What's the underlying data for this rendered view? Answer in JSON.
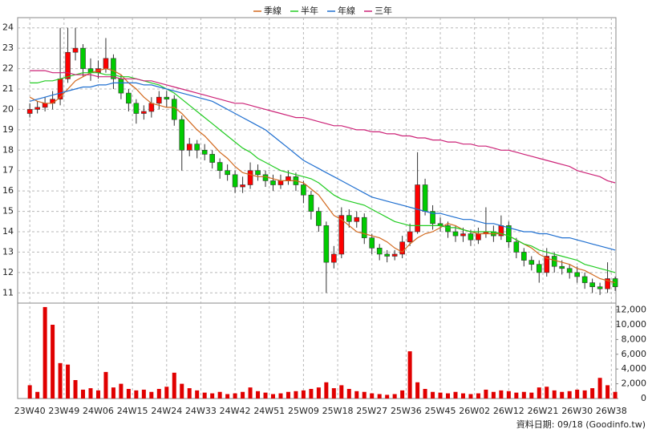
{
  "chart_data": [
    {
      "type": "candlestick",
      "x": [
        0,
        2,
        4,
        6,
        8,
        10,
        12,
        14,
        16,
        18,
        20,
        22,
        24,
        26,
        28,
        30,
        32,
        34,
        36,
        38,
        40,
        42,
        44,
        46,
        48,
        50,
        52,
        54,
        56,
        58,
        60,
        62,
        64,
        66,
        68,
        70,
        72,
        74,
        76,
        78,
        80,
        82,
        84,
        86,
        88,
        90,
        92,
        94,
        96,
        98,
        100,
        102,
        104,
        106,
        108,
        110,
        112,
        114,
        116,
        118,
        120,
        122,
        124,
        126,
        128,
        130,
        132,
        134,
        136,
        138,
        140,
        142,
        144,
        146,
        148,
        150,
        152,
        154
      ],
      "open": [
        19.8,
        20.0,
        20.1,
        20.3,
        20.5,
        21.5,
        22.8,
        23.0,
        22.0,
        21.8,
        22.0,
        22.5,
        21.5,
        20.8,
        20.3,
        19.8,
        19.9,
        20.3,
        20.6,
        20.5,
        19.5,
        18.0,
        18.3,
        18.0,
        17.8,
        17.4,
        17.0,
        16.8,
        16.2,
        16.3,
        17.0,
        16.8,
        16.5,
        16.3,
        16.5,
        16.7,
        16.3,
        15.8,
        15.0,
        14.3,
        12.5,
        12.9,
        14.8,
        14.5,
        14.7,
        13.7,
        13.2,
        12.9,
        12.8,
        12.9,
        13.5,
        14.0,
        16.3,
        15.0,
        14.4,
        14.3,
        14.0,
        13.8,
        13.9,
        13.6,
        13.9,
        14.0,
        13.8,
        14.3,
        13.5,
        13.0,
        12.6,
        12.4,
        12.0,
        12.8,
        12.3,
        12.2,
        12.0,
        11.8,
        11.5,
        11.3,
        11.2,
        11.7
      ],
      "high": [
        20.3,
        20.4,
        20.6,
        20.9,
        24.0,
        24.0,
        24.0,
        23.2,
        22.5,
        22.4,
        23.5,
        22.7,
        21.7,
        21.0,
        20.5,
        20.2,
        20.6,
        20.9,
        20.9,
        20.7,
        19.7,
        18.6,
        18.5,
        18.3,
        18.0,
        17.6,
        17.3,
        17.0,
        16.7,
        17.4,
        17.3,
        17.0,
        16.8,
        16.8,
        17.0,
        16.9,
        16.5,
        16.0,
        15.2,
        14.5,
        13.3,
        15.2,
        15.1,
        15.0,
        14.9,
        13.9,
        13.4,
        13.1,
        13.1,
        13.8,
        14.4,
        17.9,
        16.6,
        15.3,
        14.7,
        14.5,
        14.3,
        14.2,
        14.1,
        14.2,
        15.2,
        14.3,
        14.8,
        14.5,
        13.7,
        13.2,
        12.8,
        12.6,
        13.2,
        13.0,
        12.6,
        12.4,
        12.3,
        12.0,
        11.7,
        11.5,
        12.5,
        11.8
      ],
      "low": [
        19.6,
        19.8,
        19.9,
        20.0,
        20.2,
        21.3,
        22.4,
        21.6,
        21.4,
        21.5,
        21.8,
        21.0,
        20.5,
        19.9,
        19.3,
        19.5,
        19.6,
        20.0,
        20.1,
        19.2,
        17.0,
        17.7,
        17.6,
        17.5,
        17.1,
        16.6,
        16.5,
        15.9,
        15.9,
        16.1,
        16.5,
        16.2,
        16.0,
        16.1,
        16.3,
        16.0,
        15.4,
        14.6,
        14.0,
        11.0,
        12.2,
        12.7,
        14.2,
        14.2,
        13.4,
        12.9,
        12.6,
        12.5,
        12.6,
        12.7,
        13.3,
        13.9,
        14.8,
        14.1,
        14.0,
        13.7,
        13.5,
        13.5,
        13.3,
        13.4,
        13.7,
        13.5,
        13.6,
        13.2,
        12.7,
        12.3,
        12.1,
        11.5,
        11.8,
        12.0,
        11.9,
        11.7,
        11.5,
        11.2,
        11.0,
        10.9,
        11.0,
        11.1
      ],
      "close": [
        20.0,
        20.1,
        20.3,
        20.5,
        21.5,
        22.8,
        23.0,
        22.0,
        21.8,
        22.0,
        22.5,
        21.5,
        20.8,
        20.3,
        19.8,
        19.9,
        20.3,
        20.6,
        20.5,
        19.5,
        18.0,
        18.3,
        18.0,
        17.8,
        17.4,
        17.0,
        16.8,
        16.2,
        16.3,
        17.0,
        16.8,
        16.5,
        16.3,
        16.5,
        16.7,
        16.3,
        15.8,
        15.0,
        14.3,
        12.5,
        12.9,
        14.8,
        14.5,
        14.7,
        13.7,
        13.2,
        12.9,
        12.8,
        12.9,
        13.5,
        14.0,
        16.3,
        15.0,
        14.4,
        14.3,
        14.0,
        13.8,
        13.9,
        13.6,
        13.9,
        14.0,
        13.8,
        14.3,
        13.5,
        13.0,
        12.6,
        12.4,
        12.0,
        12.8,
        12.3,
        12.2,
        12.0,
        11.8,
        11.5,
        11.3,
        11.2,
        11.7,
        11.3
      ],
      "up_color": "#ff0000",
      "down_color": "#00cc00",
      "series": [
        {
          "name": "季線",
          "color": "#d2691e",
          "values": [
            20.6,
            20.4,
            20.3,
            20.3,
            20.6,
            21.0,
            21.4,
            21.6,
            21.8,
            21.9,
            22.0,
            21.9,
            21.7,
            21.3,
            21.0,
            20.6,
            20.3,
            20.2,
            20.1,
            20.1,
            19.8,
            19.4,
            19.0,
            18.7,
            18.3,
            17.9,
            17.6,
            17.2,
            16.9,
            16.8,
            16.7,
            16.7,
            16.6,
            16.5,
            16.5,
            16.5,
            16.4,
            16.1,
            15.8,
            15.3,
            14.8,
            14.6,
            14.3,
            14.0,
            13.9,
            13.8,
            13.7,
            13.5,
            13.2,
            13.0,
            13.4,
            13.7,
            13.9,
            14.0,
            14.2,
            14.4,
            14.3,
            14.1,
            14.0,
            13.9,
            13.9,
            13.9,
            13.9,
            13.8,
            13.6,
            13.4,
            13.2,
            12.9,
            12.7,
            12.6,
            12.5,
            12.4,
            12.2,
            12.1,
            11.9,
            11.7,
            11.6,
            11.5
          ]
        },
        {
          "name": "半年",
          "color": "#22cc22",
          "values": [
            21.3,
            21.3,
            21.4,
            21.4,
            21.5,
            21.6,
            21.7,
            21.8,
            21.8,
            21.8,
            21.7,
            21.7,
            21.6,
            21.6,
            21.5,
            21.4,
            21.3,
            21.2,
            21.0,
            20.8,
            20.5,
            20.2,
            19.9,
            19.6,
            19.3,
            19.0,
            18.7,
            18.4,
            18.1,
            17.9,
            17.6,
            17.4,
            17.2,
            17.0,
            16.9,
            16.8,
            16.7,
            16.6,
            16.4,
            16.1,
            15.8,
            15.6,
            15.5,
            15.4,
            15.3,
            15.1,
            14.9,
            14.7,
            14.5,
            14.4,
            14.3,
            14.3,
            14.3,
            14.3,
            14.3,
            14.2,
            14.2,
            14.1,
            14.0,
            14.0,
            14.0,
            14.0,
            13.9,
            13.8,
            13.6,
            13.4,
            13.3,
            13.1,
            13.0,
            12.9,
            12.8,
            12.7,
            12.6,
            12.4,
            12.3,
            12.2,
            12.1,
            12.0
          ]
        },
        {
          "name": "年線",
          "color": "#1f6fd0",
          "values": [
            20.4,
            20.5,
            20.6,
            20.7,
            20.8,
            20.9,
            21.0,
            21.1,
            21.1,
            21.2,
            21.2,
            21.3,
            21.3,
            21.3,
            21.3,
            21.2,
            21.2,
            21.1,
            21.0,
            20.9,
            20.8,
            20.7,
            20.6,
            20.5,
            20.4,
            20.2,
            20.0,
            19.8,
            19.6,
            19.4,
            19.2,
            19.0,
            18.7,
            18.4,
            18.1,
            17.8,
            17.5,
            17.3,
            17.1,
            16.9,
            16.7,
            16.5,
            16.3,
            16.1,
            15.9,
            15.7,
            15.6,
            15.5,
            15.4,
            15.3,
            15.2,
            15.1,
            15.0,
            14.9,
            14.9,
            14.8,
            14.7,
            14.6,
            14.6,
            14.5,
            14.4,
            14.4,
            14.3,
            14.2,
            14.1,
            14.0,
            14.0,
            13.9,
            13.9,
            13.8,
            13.7,
            13.7,
            13.6,
            13.5,
            13.4,
            13.3,
            13.2,
            13.1
          ]
        },
        {
          "name": "三年",
          "color": "#cc2277",
          "values": [
            21.9,
            21.9,
            21.9,
            21.8,
            21.8,
            21.8,
            21.7,
            21.7,
            21.7,
            21.6,
            21.6,
            21.6,
            21.5,
            21.5,
            21.5,
            21.4,
            21.4,
            21.3,
            21.2,
            21.1,
            21.0,
            20.9,
            20.8,
            20.7,
            20.6,
            20.5,
            20.4,
            20.3,
            20.3,
            20.2,
            20.1,
            20.0,
            19.9,
            19.8,
            19.7,
            19.6,
            19.6,
            19.5,
            19.4,
            19.3,
            19.2,
            19.2,
            19.1,
            19.0,
            19.0,
            18.9,
            18.9,
            18.8,
            18.8,
            18.7,
            18.7,
            18.6,
            18.6,
            18.5,
            18.5,
            18.4,
            18.4,
            18.3,
            18.3,
            18.2,
            18.2,
            18.1,
            18.0,
            18.0,
            17.9,
            17.8,
            17.7,
            17.6,
            17.5,
            17.4,
            17.3,
            17.2,
            17.0,
            16.9,
            16.8,
            16.7,
            16.5,
            16.4
          ]
        }
      ],
      "xlim": [
        -3.2,
        154.2
      ],
      "xticks": [
        {
          "value": 0,
          "label": "23W40"
        },
        {
          "value": 9,
          "label": "23W49"
        },
        {
          "value": 18,
          "label": "24W06"
        },
        {
          "value": 27,
          "label": "24W15"
        },
        {
          "value": 36,
          "label": "24W24"
        },
        {
          "value": 45,
          "label": "24W33"
        },
        {
          "value": 54,
          "label": "24W42"
        },
        {
          "value": 63,
          "label": "24W51"
        },
        {
          "value": 72,
          "label": "25W09"
        },
        {
          "value": 81,
          "label": "25W18"
        },
        {
          "value": 90,
          "label": "25W27"
        },
        {
          "value": 99,
          "label": "25W36"
        },
        {
          "value": 108,
          "label": "25W45"
        },
        {
          "value": 117,
          "label": "26W02"
        },
        {
          "value": 126,
          "label": "26W12"
        },
        {
          "value": 135,
          "label": "26W21"
        },
        {
          "value": 144,
          "label": "26W30"
        },
        {
          "value": 153,
          "label": "26W38"
        }
      ],
      "ylim": [
        10.5,
        24.5
      ],
      "yticks": [
        11,
        12,
        13,
        14,
        15,
        16,
        17,
        18,
        19,
        20,
        21,
        22,
        23,
        24
      ],
      "grid": true,
      "legend": "top"
    },
    {
      "type": "bar",
      "values": [
        1800,
        900,
        12400,
        10000,
        4800,
        4600,
        2500,
        1200,
        1400,
        1100,
        3600,
        1500,
        2000,
        1300,
        1100,
        1200,
        900,
        1300,
        1600,
        3500,
        2000,
        1400,
        1100,
        800,
        700,
        900,
        600,
        700,
        900,
        1500,
        1000,
        800,
        600,
        700,
        900,
        1000,
        1100,
        1300,
        1500,
        2200,
        1400,
        1800,
        1300,
        1000,
        900,
        700,
        600,
        500,
        600,
        1100,
        6400,
        2200,
        1300,
        900,
        800,
        700,
        900,
        700,
        600,
        700,
        1200,
        900,
        1100,
        1000,
        800,
        900,
        800,
        1500,
        1600,
        1100,
        900,
        1000,
        1200,
        1100,
        1400,
        2800,
        1800,
        900
      ],
      "color": "#e00000",
      "ylim": [
        0,
        12500
      ],
      "yticks": [
        0,
        {
          "value": 2000,
          "label": "2,000"
        },
        {
          "value": 4000,
          "label": "4,000"
        },
        {
          "value": 6000,
          "label": "6,000"
        },
        {
          "value": 8000,
          "label": "8,000"
        },
        {
          "value": 10000,
          "label": "10,000"
        },
        {
          "value": 12000,
          "label": "12,000"
        }
      ]
    }
  ],
  "footer": "資料日期: 09/18 (Goodinfo.tw)"
}
